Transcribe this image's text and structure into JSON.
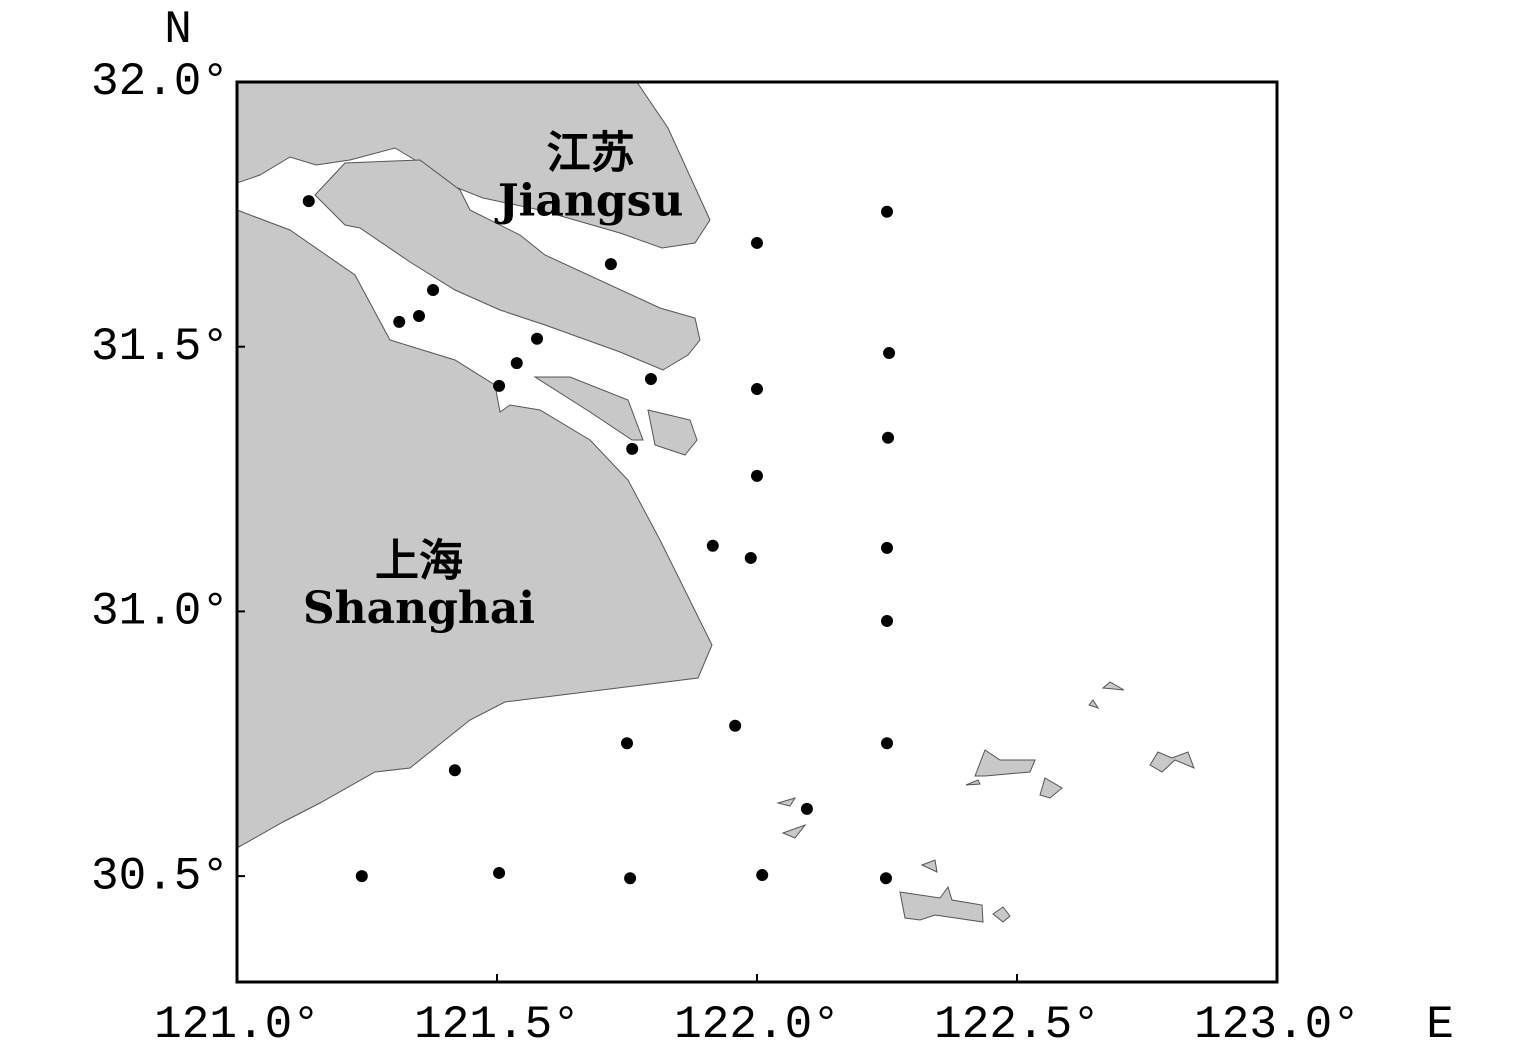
{
  "chart_data": {
    "type": "scatter",
    "x_label": "E",
    "y_label": "N",
    "xlim": [
      121.0,
      123.0
    ],
    "ylim": [
      30.3,
      32.0
    ],
    "xticks": [
      {
        "value": 121.0,
        "label": "121.0°"
      },
      {
        "value": 121.5,
        "label": "121.5°"
      },
      {
        "value": 122.0,
        "label": "122.0°"
      },
      {
        "value": 122.5,
        "label": "122.5°"
      },
      {
        "value": 123.0,
        "label": "123.0°"
      }
    ],
    "yticks": [
      {
        "value": 30.5,
        "label": "30.5°"
      },
      {
        "value": 31.0,
        "label": "31.0°"
      },
      {
        "value": 31.5,
        "label": "31.5°"
      },
      {
        "value": 32.0,
        "label": "32.0°"
      }
    ],
    "color": "#000000",
    "x": [
      121.138,
      122.25,
      122.0,
      121.719,
      121.377,
      121.312,
      121.35,
      121.577,
      121.538,
      122.254,
      121.504,
      121.796,
      122.0,
      122.252,
      121.76,
      122.0,
      121.915,
      121.988,
      122.25,
      122.25,
      121.958,
      121.75,
      122.25,
      121.419,
      122.096,
      121.24,
      121.504,
      121.756,
      122.01,
      122.248
    ],
    "values": [
      31.775,
      31.755,
      31.696,
      31.656,
      31.607,
      31.547,
      31.558,
      31.515,
      31.469,
      31.488,
      31.426,
      31.439,
      31.42,
      31.328,
      31.307,
      31.256,
      31.124,
      31.101,
      31.12,
      30.982,
      30.784,
      30.751,
      30.751,
      30.7,
      30.627,
      30.5,
      30.506,
      30.496,
      30.502,
      30.496
    ],
    "annotations": [
      {
        "text": "江苏",
        "x": 121.68,
        "y": 31.86
      },
      {
        "text": "Jiangsu",
        "x": 121.68,
        "y": 31.77
      },
      {
        "text": "上海",
        "x": 121.35,
        "y": 31.09
      },
      {
        "text": "Shanghai",
        "x": 121.35,
        "y": 31.0
      }
    ]
  }
}
